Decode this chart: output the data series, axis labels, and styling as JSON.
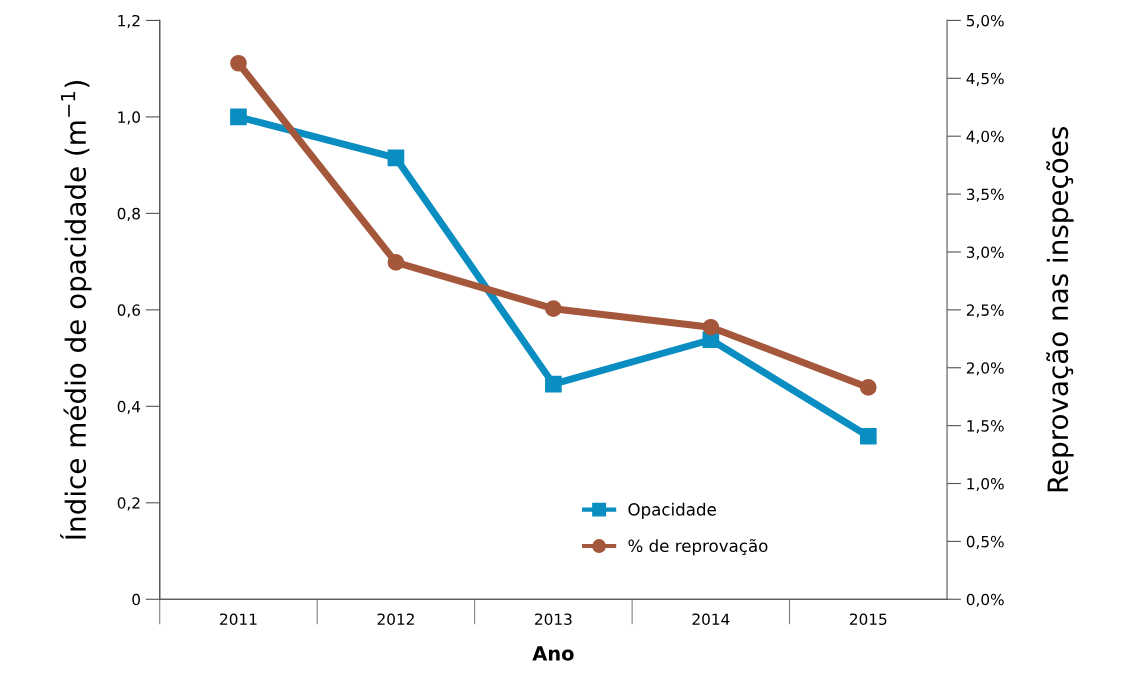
{
  "chart_data": {
    "type": "line",
    "xlabel": "Ano",
    "ylabel": "Índice médio de opacidade (m$^{−1}$)",
    "y2label": "Reprovação nas inspeções",
    "categories": [
      "2011",
      "2012",
      "2013",
      "2014",
      "2015"
    ],
    "series": [
      {
        "name": "Opacidade",
        "color": "#0a8ec2",
        "values": [
          1.0,
          0.915,
          0.446,
          0.538,
          0.338
        ],
        "marker": "square"
      },
      {
        "name": "% de reprovação",
        "color": "#a5573b",
        "values": [
          4.63,
          2.91,
          2.51,
          2.35,
          1.83
        ],
        "axis": "y2",
        "marker": "circle"
      }
    ],
    "ylim": [
      0,
      1.2
    ],
    "yticks": [
      {
        "value": 0,
        "label": "0"
      },
      {
        "value": 0.2,
        "label": "0,2"
      },
      {
        "value": 0.4,
        "label": "0,4"
      },
      {
        "value": 0.6,
        "label": "0,6"
      },
      {
        "value": 0.8,
        "label": "0,8"
      },
      {
        "value": 1.0,
        "label": "1,0"
      },
      {
        "value": 1.2,
        "label": "1,2"
      }
    ],
    "y2lim": [
      0,
      5
    ],
    "y2ticks": [
      {
        "value": 0,
        "label": "0,0%"
      },
      {
        "value": 0.5,
        "label": "0,5%"
      },
      {
        "value": 1,
        "label": "1,0%"
      },
      {
        "value": 1.5,
        "label": "1,5%"
      },
      {
        "value": 2,
        "label": "2,0%"
      },
      {
        "value": 2.5,
        "label": "2,5%"
      },
      {
        "value": 3,
        "label": "3,0%"
      },
      {
        "value": 3.5,
        "label": "3,5%"
      },
      {
        "value": 4,
        "label": "4,0%"
      },
      {
        "value": 4.5,
        "label": "4,5%"
      },
      {
        "value": 5,
        "label": "5,0%"
      }
    ],
    "grid": false,
    "legend": "bottom",
    "line_style": "solid"
  }
}
